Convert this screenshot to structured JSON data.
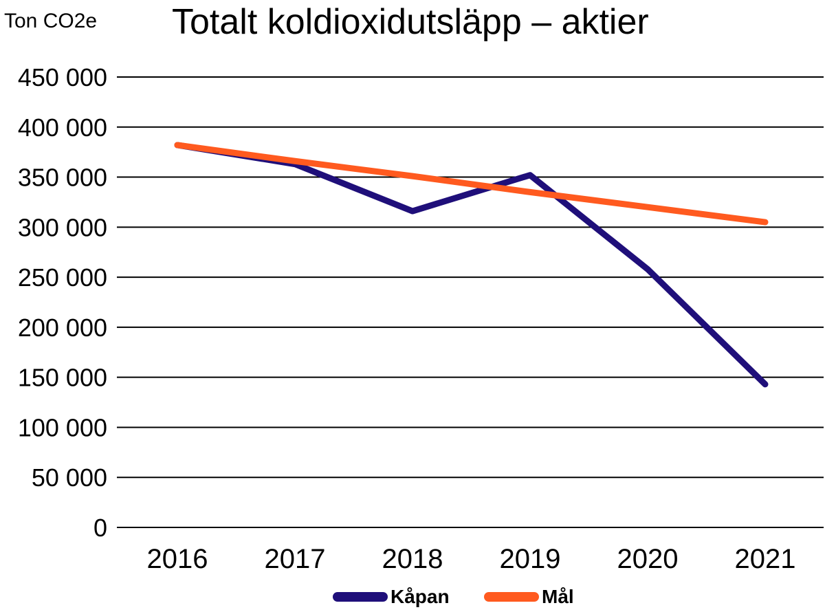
{
  "chart_data": {
    "type": "line",
    "title": "Totalt koldioxidutsläpp – aktier",
    "ylabel": "Ton CO2e",
    "xlabel": "",
    "categories": [
      "2016",
      "2017",
      "2018",
      "2019",
      "2020",
      "2021"
    ],
    "ylim": [
      0,
      450000
    ],
    "yticks": [
      0,
      50000,
      100000,
      150000,
      200000,
      250000,
      300000,
      350000,
      400000,
      450000
    ],
    "ytick_labels": [
      "0",
      "50 000",
      "100 000",
      "150 000",
      "200 000",
      "250 000",
      "300 000",
      "350 000",
      "400 000",
      "450 000"
    ],
    "grid": true,
    "legend_position": "bottom-center",
    "series": [
      {
        "name": "Kåpan",
        "color": "#1f0f7a",
        "values": [
          382000,
          363000,
          316000,
          352000,
          258000,
          143000
        ]
      },
      {
        "name": "Mål",
        "color": "#ff5a1f",
        "values": [
          382000,
          366000,
          351000,
          335000,
          320000,
          305000
        ]
      }
    ]
  }
}
